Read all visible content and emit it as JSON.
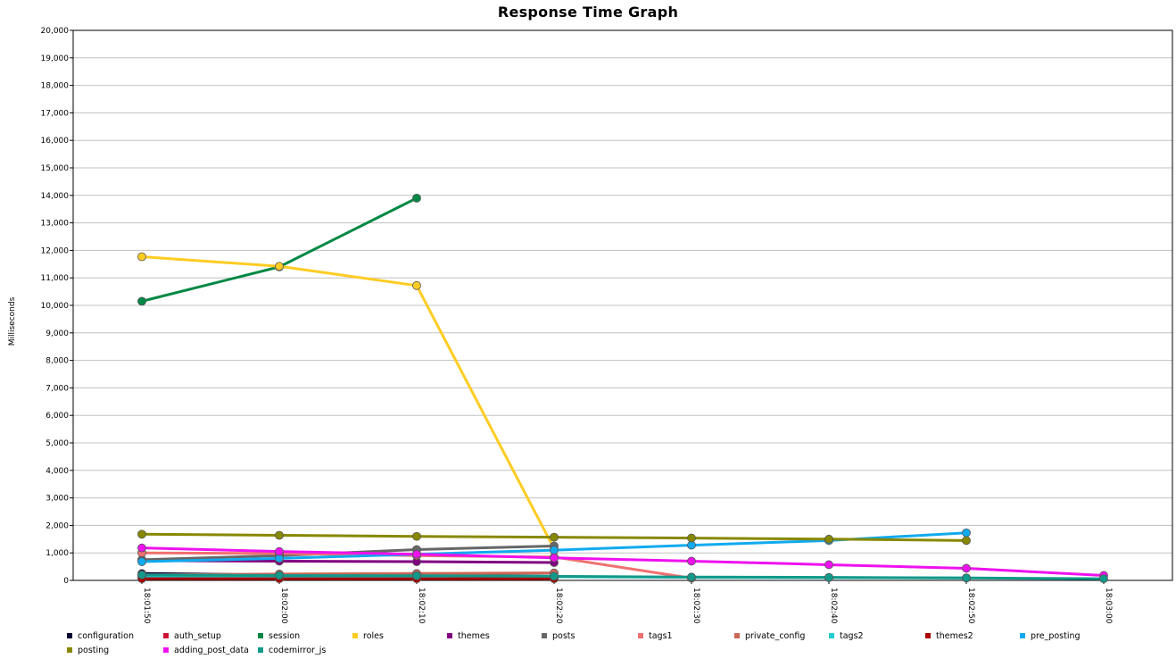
{
  "chart_data": {
    "type": "line",
    "title": "Response Time Graph",
    "xlabel": "",
    "ylabel": "Milliseconds",
    "ylim": [
      0,
      20000
    ],
    "yticks": [
      0,
      1000,
      2000,
      3000,
      4000,
      5000,
      6000,
      7000,
      8000,
      9000,
      10000,
      11000,
      12000,
      13000,
      14000,
      15000,
      16000,
      17000,
      18000,
      19000,
      20000
    ],
    "ytick_labels": [
      "0",
      "1,000",
      "2,000",
      "3,000",
      "4,000",
      "5,000",
      "6,000",
      "7,000",
      "8,000",
      "9,000",
      "10,000",
      "11,000",
      "12,000",
      "13,000",
      "14,000",
      "15,000",
      "16,000",
      "17,000",
      "18,000",
      "19,000",
      "20,000"
    ],
    "categories": [
      "18:01:50",
      "18:02:00",
      "18:02:10",
      "18:02:20",
      "18:02:30",
      "18:02:40",
      "18:02:50",
      "18:03:00"
    ],
    "grid": true,
    "legend_position": "bottom",
    "series": [
      {
        "name": "configuration",
        "color": "#000033",
        "values": [
          250,
          200,
          200,
          150,
          null,
          null,
          null,
          null
        ]
      },
      {
        "name": "auth_setup",
        "color": "#cc1133",
        "values": [
          80,
          80,
          80,
          80,
          null,
          null,
          null,
          null
        ]
      },
      {
        "name": "session",
        "color": "#008844",
        "values": [
          10150,
          11400,
          13900,
          null,
          null,
          null,
          null,
          null
        ]
      },
      {
        "name": "roles",
        "color": "#ffcc22",
        "values": [
          11770,
          11420,
          10720,
          1150,
          null,
          null,
          null,
          null
        ]
      },
      {
        "name": "themes",
        "color": "#800080",
        "values": [
          720,
          700,
          680,
          650,
          null,
          null,
          null,
          null
        ]
      },
      {
        "name": "posts",
        "color": "#666666",
        "values": [
          750,
          900,
          1120,
          1250,
          null,
          null,
          null,
          null
        ]
      },
      {
        "name": "tags1",
        "color": "#f07070",
        "values": [
          1000,
          980,
          900,
          850,
          80,
          null,
          null,
          null
        ]
      },
      {
        "name": "private_config",
        "color": "#cc6655",
        "values": [
          200,
          230,
          250,
          270,
          null,
          null,
          null,
          null
        ]
      },
      {
        "name": "tags2",
        "color": "#22cccc",
        "values": [
          150,
          150,
          140,
          130,
          110,
          100,
          90,
          null
        ]
      },
      {
        "name": "themes2",
        "color": "#aa0000",
        "values": [
          60,
          60,
          60,
          60,
          null,
          null,
          null,
          null
        ]
      },
      {
        "name": "pre_posting",
        "color": "#11aaee",
        "values": [
          680,
          800,
          950,
          1100,
          1280,
          1450,
          1730,
          null
        ]
      },
      {
        "name": "posting",
        "color": "#888800",
        "values": [
          1680,
          1640,
          1600,
          1570,
          1540,
          1500,
          1450,
          null
        ]
      },
      {
        "name": "adding_post_data",
        "color": "#ee11ee",
        "values": [
          1180,
          1050,
          950,
          820,
          700,
          570,
          440,
          180
        ]
      },
      {
        "name": "codemirror_js",
        "color": "#11998a",
        "values": [
          200,
          180,
          170,
          150,
          120,
          110,
          90,
          60
        ]
      }
    ]
  }
}
